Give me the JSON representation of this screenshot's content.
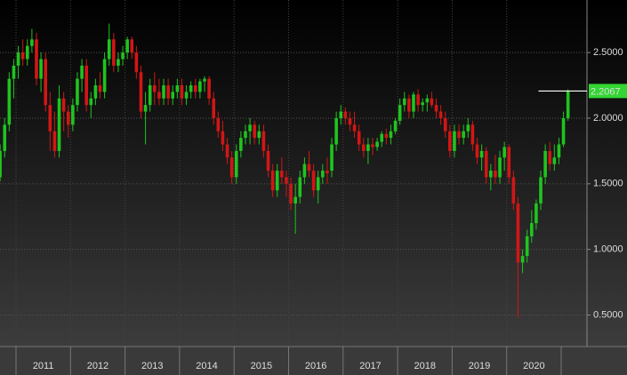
{
  "chart_data": {
    "type": "candlestick",
    "categories": [
      "2011",
      "2012",
      "2013",
      "2014",
      "2015",
      "2016",
      "2017",
      "2018",
      "2019",
      "2020"
    ],
    "open": [
      1.55,
      1.75,
      1.95,
      2.3,
      2.4,
      2.5,
      2.45,
      2.55,
      2.6,
      2.3,
      2.45,
      2.1,
      1.9,
      1.75,
      2.15,
      2.05,
      1.95,
      2.1,
      2.3,
      2.4,
      2.1,
      2.15,
      2.25,
      2.2,
      2.45,
      2.6,
      2.4,
      2.45,
      2.5,
      2.6,
      2.5,
      2.35,
      2.05,
      2.1,
      2.25,
      2.2,
      2.15,
      2.25,
      2.15,
      2.2,
      2.25,
      2.15,
      2.2,
      2.25,
      2.2,
      2.28,
      2.3,
      2.15,
      2.0,
      1.9,
      1.8,
      1.7,
      1.55,
      1.75,
      1.85,
      1.9,
      1.95,
      1.85,
      1.9,
      1.75,
      1.6,
      1.45,
      1.6,
      1.55,
      1.5,
      1.35,
      1.4,
      1.55,
      1.65,
      1.6,
      1.45,
      1.55,
      1.6,
      1.6,
      1.8,
      2.0,
      2.05,
      2.0,
      1.95,
      1.9,
      1.8,
      1.75,
      1.8,
      1.78,
      1.82,
      1.88,
      1.85,
      1.9,
      1.98,
      2.1,
      2.15,
      2.05,
      2.18,
      2.1,
      2.12,
      2.15,
      2.1,
      2.05,
      2.0,
      1.9,
      1.75,
      1.9,
      1.85,
      1.9,
      1.95,
      1.8,
      1.7,
      1.75,
      1.55,
      1.6,
      1.55,
      1.7,
      1.78,
      1.55,
      1.35,
      0.9,
      0.95,
      1.1,
      1.2,
      1.35,
      1.55,
      1.75,
      1.65,
      1.7,
      1.8,
      2.0
    ],
    "high": [
      1.8,
      2.0,
      2.35,
      2.45,
      2.55,
      2.6,
      2.6,
      2.68,
      2.65,
      2.5,
      2.5,
      2.2,
      2.05,
      2.25,
      2.2,
      2.1,
      2.15,
      2.35,
      2.45,
      2.45,
      2.2,
      2.3,
      2.35,
      2.5,
      2.72,
      2.65,
      2.5,
      2.55,
      2.62,
      2.62,
      2.55,
      2.4,
      2.2,
      2.3,
      2.35,
      2.3,
      2.3,
      2.3,
      2.25,
      2.3,
      2.3,
      2.25,
      2.28,
      2.3,
      2.3,
      2.32,
      2.32,
      2.2,
      2.05,
      1.98,
      1.85,
      1.75,
      1.8,
      1.9,
      1.95,
      2.0,
      1.98,
      1.95,
      1.95,
      1.8,
      1.65,
      1.65,
      1.7,
      1.6,
      1.55,
      1.5,
      1.6,
      1.7,
      1.75,
      1.65,
      1.6,
      1.65,
      1.7,
      1.85,
      2.05,
      2.1,
      2.08,
      2.05,
      2.05,
      1.95,
      1.85,
      1.85,
      1.85,
      1.85,
      1.9,
      1.92,
      1.95,
      2.0,
      2.15,
      2.2,
      2.18,
      2.2,
      2.22,
      2.15,
      2.18,
      2.2,
      2.15,
      2.1,
      2.05,
      1.95,
      1.95,
      1.95,
      1.95,
      2.0,
      1.98,
      1.85,
      1.8,
      1.78,
      1.65,
      1.72,
      1.75,
      1.82,
      1.8,
      1.6,
      1.4,
      1.0,
      1.15,
      1.3,
      1.38,
      1.6,
      1.8,
      1.82,
      1.8,
      1.85,
      2.05,
      2.22
    ],
    "low": [
      1.52,
      1.7,
      1.9,
      2.15,
      2.3,
      2.4,
      2.4,
      2.5,
      2.25,
      2.2,
      2.05,
      1.75,
      1.7,
      1.7,
      1.9,
      1.85,
      1.9,
      2.05,
      2.2,
      2.05,
      2.0,
      2.1,
      2.15,
      2.15,
      2.4,
      2.35,
      2.35,
      2.4,
      2.45,
      2.45,
      2.3,
      2.0,
      1.8,
      2.05,
      2.1,
      2.1,
      2.1,
      2.1,
      2.1,
      2.15,
      2.1,
      2.1,
      2.15,
      2.15,
      2.15,
      2.2,
      2.1,
      1.95,
      1.85,
      1.75,
      1.65,
      1.5,
      1.5,
      1.7,
      1.8,
      1.8,
      1.8,
      1.8,
      1.7,
      1.55,
      1.4,
      1.4,
      1.5,
      1.4,
      1.3,
      1.12,
      1.35,
      1.5,
      1.55,
      1.4,
      1.35,
      1.5,
      1.5,
      1.55,
      1.75,
      1.95,
      1.95,
      1.9,
      1.85,
      1.75,
      1.7,
      1.65,
      1.72,
      1.75,
      1.78,
      1.8,
      1.8,
      1.88,
      1.95,
      2.05,
      2.0,
      2.0,
      2.05,
      2.05,
      2.05,
      2.08,
      2.0,
      1.95,
      1.85,
      1.7,
      1.7,
      1.8,
      1.8,
      1.85,
      1.75,
      1.65,
      1.6,
      1.5,
      1.45,
      1.5,
      1.5,
      1.6,
      1.5,
      1.3,
      0.48,
      0.82,
      0.9,
      1.05,
      1.15,
      1.3,
      1.5,
      1.6,
      1.6,
      1.65,
      1.78,
      1.98
    ],
    "close": [
      1.75,
      1.95,
      2.3,
      2.4,
      2.5,
      2.45,
      2.55,
      2.6,
      2.3,
      2.45,
      2.1,
      1.9,
      1.75,
      2.15,
      2.05,
      1.95,
      2.1,
      2.3,
      2.4,
      2.1,
      2.15,
      2.25,
      2.2,
      2.45,
      2.6,
      2.4,
      2.45,
      2.5,
      2.6,
      2.5,
      2.35,
      2.05,
      2.1,
      2.25,
      2.2,
      2.15,
      2.25,
      2.15,
      2.2,
      2.25,
      2.15,
      2.2,
      2.25,
      2.2,
      2.28,
      2.3,
      2.15,
      2.0,
      1.9,
      1.8,
      1.7,
      1.55,
      1.75,
      1.85,
      1.9,
      1.95,
      1.85,
      1.9,
      1.75,
      1.6,
      1.45,
      1.6,
      1.55,
      1.5,
      1.35,
      1.4,
      1.55,
      1.65,
      1.6,
      1.45,
      1.55,
      1.6,
      1.58,
      1.8,
      2.0,
      2.05,
      2.0,
      1.95,
      1.9,
      1.8,
      1.75,
      1.8,
      1.78,
      1.82,
      1.88,
      1.85,
      1.9,
      1.98,
      2.1,
      2.15,
      2.05,
      2.18,
      2.1,
      2.12,
      2.15,
      2.1,
      2.05,
      2.0,
      1.9,
      1.75,
      1.9,
      1.85,
      1.9,
      1.95,
      1.8,
      1.7,
      1.75,
      1.55,
      1.6,
      1.55,
      1.7,
      1.78,
      1.55,
      1.35,
      0.9,
      0.95,
      1.1,
      1.2,
      1.35,
      1.55,
      1.75,
      1.65,
      1.7,
      1.8,
      2.0,
      2.2067
    ],
    "up_color": "#1fc41f",
    "down_color": "#d21616",
    "ylim": [
      0.26,
      2.9
    ],
    "yticks": [
      {
        "value": 0.5,
        "label": "0.5000"
      },
      {
        "value": 1,
        "label": "1.0000"
      },
      {
        "value": 1.5,
        "label": "1.5000"
      },
      {
        "value": 2,
        "label": "2.0000"
      },
      {
        "value": 2.5,
        "label": "2.5000"
      }
    ],
    "grid": true,
    "last_price": 2.2067
  }
}
